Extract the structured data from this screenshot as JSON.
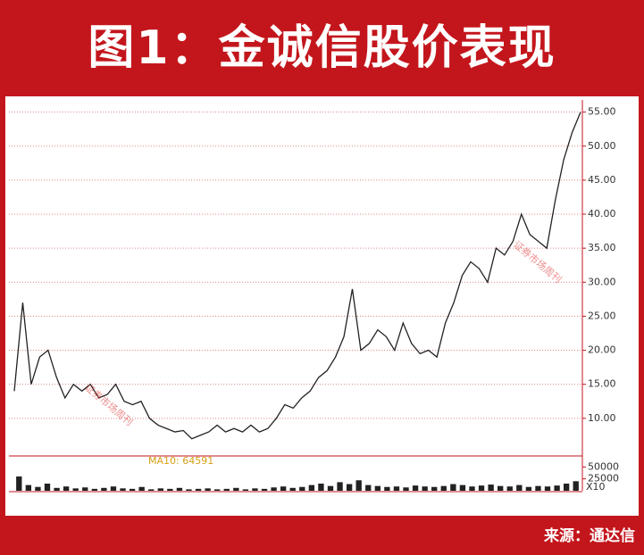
{
  "header": {
    "title": "图1：金诚信股价表现"
  },
  "footer": {
    "source": "来源：通达信"
  },
  "chart_data": [
    {
      "type": "line",
      "color": "#222222",
      "watermark": "证券市场周刊",
      "values": [
        14,
        27,
        15,
        19,
        20,
        16,
        13,
        15,
        14,
        15,
        13,
        13.5,
        15,
        12.5,
        12,
        12.5,
        10,
        9,
        8.5,
        8,
        8.2,
        7,
        7.5,
        8,
        9,
        8,
        8.5,
        8,
        9,
        8,
        8.5,
        10,
        12,
        11.5,
        13,
        14,
        16,
        17,
        19,
        22,
        29,
        20,
        21,
        23,
        22,
        20,
        24,
        21,
        19.5,
        20,
        19,
        24,
        27,
        31,
        33,
        32,
        30,
        35,
        34,
        36,
        40,
        37,
        36,
        35,
        42,
        48,
        52,
        55
      ],
      "ylim": [
        4.6,
        56
      ],
      "yticks": [
        {
          "value": 10,
          "label": "10.00"
        },
        {
          "value": 15,
          "label": "15.00"
        },
        {
          "value": 20,
          "label": "20.00"
        },
        {
          "value": 25,
          "label": "25.00"
        },
        {
          "value": 30,
          "label": "30.00"
        },
        {
          "value": 35,
          "label": "35.00"
        },
        {
          "value": 40,
          "label": "40.00"
        },
        {
          "value": 45,
          "label": "45.00"
        },
        {
          "value": 50,
          "label": "50.00"
        },
        {
          "value": 55,
          "label": "55.00"
        }
      ],
      "grid": true
    },
    {
      "type": "bar",
      "color": "#222222",
      "annotation": "MA10: 64591",
      "unit_label": "X10",
      "values": [
        30000,
        12000,
        8000,
        15000,
        6000,
        9000,
        5000,
        7000,
        4000,
        6000,
        9000,
        5000,
        4000,
        8000,
        3000,
        5000,
        4000,
        6000,
        3000,
        4000,
        5000,
        3000,
        4000,
        6000,
        3000,
        5000,
        4000,
        7000,
        9000,
        6000,
        8000,
        12000,
        15000,
        10000,
        18000,
        14000,
        22000,
        12000,
        10000,
        8000,
        9000,
        7000,
        11000,
        9000,
        8000,
        10000,
        14000,
        12000,
        9000,
        11000,
        13000,
        10000,
        9000,
        12000,
        8000,
        10000,
        9000,
        11000,
        15000,
        20000
      ],
      "ylim": [
        0,
        60000
      ],
      "yticks": [
        50000,
        25000
      ]
    }
  ]
}
